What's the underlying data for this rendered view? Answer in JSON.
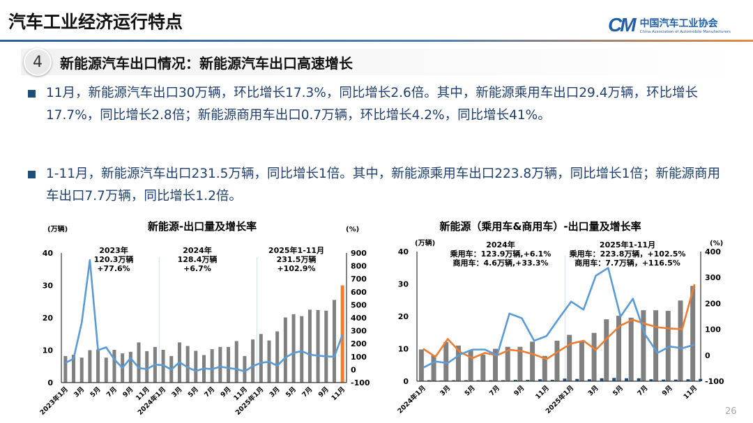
{
  "header": {
    "title": "汽车工业经济运行特点",
    "logo_mark": "CM",
    "logo_cn": "中国汽车工业协会",
    "logo_en": "China Association of Automobile Manufacturers"
  },
  "section": {
    "number": "4",
    "title": "新能源汽车出口情况：新能源汽车出口高速增长"
  },
  "bullets": [
    "11月，新能源汽车出口30万辆，环比增长17.3%，同比增长2.6倍。其中，新能源乘用车出口29.4万辆，环比增长17.7%，同比增长2.8倍；新能源商用车出口0.7万辆，环比增长4.2%，同比增长41%。",
    "1-11月，新能源汽车出口231.5万辆，同比增长1倍。其中，新能源乘用车出口223.8万辆，同比增长1倍；新能源商用车出口7.7万辆，同比增长1.2倍。"
  ],
  "page_number": "26",
  "chart_data": [
    {
      "type": "bar+line",
      "title": "新能源-出口量及增长率",
      "ylabel": "(万辆)",
      "y2label": "(%)",
      "ylim": [
        0,
        40
      ],
      "y2lim": [
        -100,
        900
      ],
      "yticks": [
        "0",
        "10",
        "20",
        "30",
        "40"
      ],
      "y2ticks": [
        "-100",
        "0",
        "100",
        "200",
        "300",
        "400",
        "500",
        "600",
        "700",
        "800",
        "900"
      ],
      "categories": [
        "2023年1月",
        "",
        "3月",
        "",
        "5月",
        "",
        "7月",
        "",
        "9月",
        "",
        "11月",
        "",
        "2024年1月",
        "",
        "3月",
        "",
        "5月",
        "",
        "7月",
        "",
        "9月",
        "",
        "11月",
        "",
        "2025年1月",
        "",
        "3月",
        "",
        "5月",
        "",
        "7月",
        "",
        "9月",
        "",
        "11月"
      ],
      "series": [
        {
          "kind": "bar",
          "axis": "left",
          "color": "#808080",
          "highlight_last": "#ED7D31",
          "values": [
            8.2,
            8.6,
            7.7,
            10.0,
            10.2,
            7.7,
            10.1,
            9.0,
            9.5,
            12.4,
            9.7,
            11.0,
            10.1,
            8.2,
            12.4,
            11.3,
            9.8,
            8.5,
            10.3,
            11.0,
            11.0,
            12.8,
            8.2,
            13.3,
            15.0,
            13.0,
            15.8,
            20.1,
            21.1,
            20.5,
            22.5,
            22.4,
            22.2,
            25.5,
            30.0
          ]
        },
        {
          "kind": "line",
          "axis": "right",
          "color": "#5B9BD5",
          "values": [
            52,
            84,
            362,
            846,
            150,
            172,
            79,
            13,
            90,
            13,
            4,
            39,
            34,
            0,
            57,
            18,
            -11,
            9,
            4,
            22,
            13,
            4,
            -14,
            27,
            52,
            61,
            30,
            93,
            129,
            143,
            115,
            108,
            102,
            99,
            269
          ]
        }
      ],
      "annotations": [
        [
          "2023年",
          "120.3万辆",
          "+77.6%"
        ],
        [
          "2024年",
          "128.4万辆",
          "+6.7%"
        ],
        [
          "2025年1-11月",
          "231.5万辆",
          "+102.9%"
        ]
      ]
    },
    {
      "type": "bar+line",
      "title": "新能源（乘用车&商用车）-出口量及增长率",
      "ylabel": "(万辆)",
      "y2label": "(%)",
      "ylim": [
        0,
        40
      ],
      "y2lim": [
        -100,
        400
      ],
      "yticks": [
        "0",
        "10",
        "20",
        "30",
        "40"
      ],
      "y2ticks": [
        "-100",
        "0",
        "100",
        "200",
        "300",
        "400"
      ],
      "categories": [
        "2024年1月",
        "",
        "3月",
        "",
        "5月",
        "",
        "7月",
        "",
        "9月",
        "",
        "11月",
        "",
        "2025年1月",
        "",
        "3月",
        "",
        "5月",
        "",
        "7月",
        "",
        "9月",
        "",
        "11月"
      ],
      "series": [
        {
          "kind": "bar",
          "axis": "left",
          "color": "#808080",
          "values": [
            9.8,
            8.0,
            12.1,
            11.0,
            9.5,
            8.2,
            10.0,
            10.6,
            10.6,
            12.2,
            7.8,
            12.5,
            14.3,
            12.4,
            14.9,
            19.1,
            20.2,
            19.6,
            21.9,
            21.9,
            21.7,
            24.9,
            29.4
          ]
        },
        {
          "kind": "bar",
          "axis": "left",
          "color": "#1F4E79",
          "values": [
            0.3,
            0.2,
            0.3,
            0.3,
            0.3,
            0.3,
            0.3,
            0.4,
            0.4,
            0.6,
            0.4,
            0.8,
            0.7,
            0.6,
            0.9,
            1.0,
            0.9,
            0.9,
            0.6,
            0.5,
            0.5,
            0.6,
            0.7
          ]
        },
        {
          "kind": "line",
          "axis": "right",
          "color": "#ED7D31",
          "values": [
            25,
            -6,
            63,
            12,
            -11,
            9,
            0,
            21,
            16,
            3,
            -15,
            16,
            45,
            56,
            21,
            70,
            115,
            137,
            121,
            108,
            103,
            101,
            274
          ]
        },
        {
          "kind": "line",
          "axis": "right",
          "color": "#5B9BD5",
          "values": [
            -48,
            -24,
            -30,
            3,
            22,
            22,
            0,
            161,
            143,
            56,
            74,
            142,
            207,
            176,
            307,
            337,
            149,
            218,
            79,
            9,
            34,
            27,
            41
          ]
        }
      ],
      "annotations": [
        [
          "2024年",
          "乘用车：123.9万辆,+6.1%",
          "商用车：4.6万辆,+33.3%"
        ],
        [
          "2025年1-11月",
          "乘用车：223.8万辆，+102.5%",
          "商用车：7.7万辆，+116.5%"
        ]
      ]
    }
  ]
}
